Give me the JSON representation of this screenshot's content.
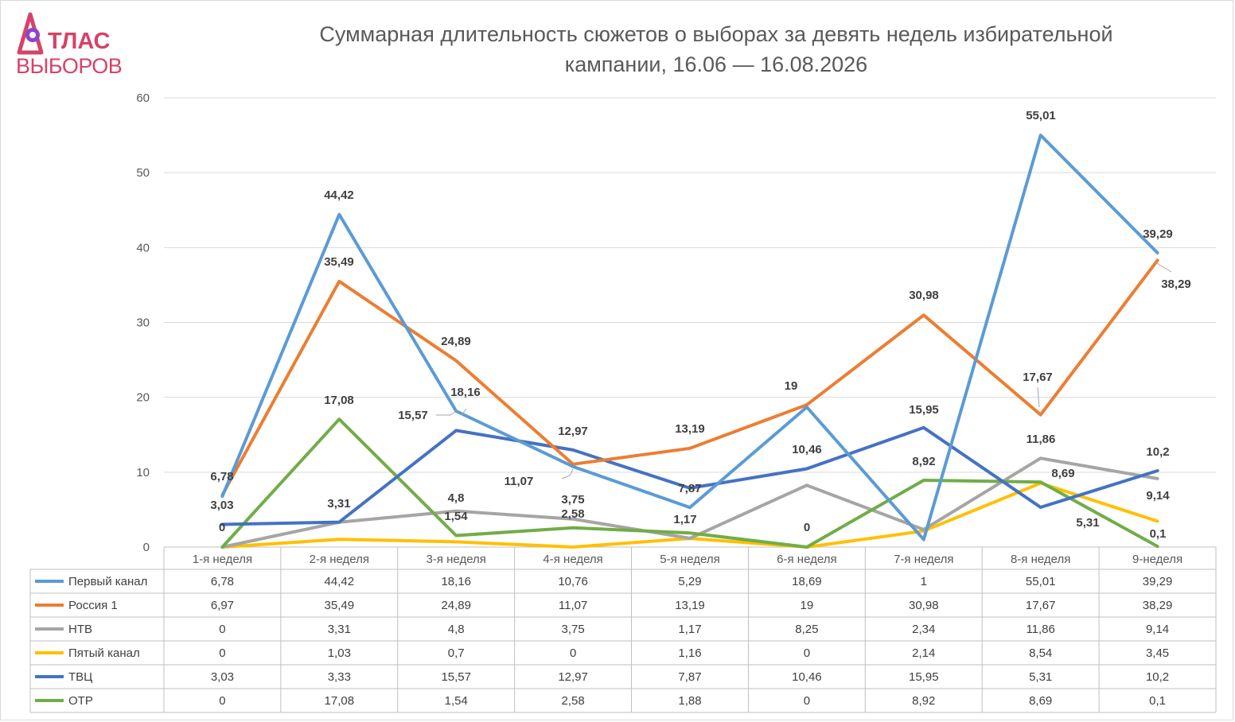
{
  "logo": {
    "top": "ТЛАС",
    "bottom": "ВЫБОРОВ",
    "color": "#d64268"
  },
  "chart_data": {
    "type": "line",
    "title": [
      "Суммарная длительность сюжетов о выборах за девять недель избирательной",
      "кампании, 16.06 — 16.08.2026"
    ],
    "categories": [
      "1-я неделя",
      "2-я неделя",
      "3-я неделя",
      "4-я неделя",
      "5-я неделя",
      "6-я неделя",
      "7-я неделя",
      "8-я неделя",
      "9-неделя"
    ],
    "yticks": [
      "0",
      "10",
      "20",
      "30",
      "40",
      "50",
      "60"
    ],
    "ylim": [
      0,
      60
    ],
    "grid": true,
    "legend": "table-bottom",
    "series": [
      {
        "name": "Первый канал",
        "color": "#5b9bd5",
        "values": [
          6.78,
          44.42,
          18.16,
          10.76,
          5.29,
          18.69,
          1,
          55.01,
          39.29
        ],
        "table": [
          "6,78",
          "44,42",
          "18,16",
          "10,76",
          "5,29",
          "18,69",
          "1",
          "55,01",
          "39,29"
        ]
      },
      {
        "name": "Россия 1",
        "color": "#ed7d31",
        "values": [
          6.97,
          35.49,
          24.89,
          11.07,
          13.19,
          19,
          30.98,
          17.67,
          38.29
        ],
        "table": [
          "6,97",
          "35,49",
          "24,89",
          "11,07",
          "13,19",
          "19",
          "30,98",
          "17,67",
          "38,29"
        ]
      },
      {
        "name": "НТВ",
        "color": "#a5a5a5",
        "values": [
          0,
          3.31,
          4.8,
          3.75,
          1.17,
          8.25,
          2.34,
          11.86,
          9.14
        ],
        "table": [
          "0",
          "3,31",
          "4,8",
          "3,75",
          "1,17",
          "8,25",
          "2,34",
          "11,86",
          "9,14"
        ]
      },
      {
        "name": "Пятый канал",
        "color": "#ffc000",
        "values": [
          0,
          1.03,
          0.7,
          0,
          1.16,
          0,
          2.14,
          8.54,
          3.45
        ],
        "table": [
          "0",
          "1,03",
          "0,7",
          "0",
          "1,16",
          "0",
          "2,14",
          "8,54",
          "3,45"
        ]
      },
      {
        "name": "ТВЦ",
        "color": "#4472c4",
        "values": [
          3.03,
          3.33,
          15.57,
          12.97,
          7.87,
          10.46,
          15.95,
          5.31,
          10.2
        ],
        "table": [
          "3,03",
          "3,33",
          "15,57",
          "12,97",
          "7,87",
          "10,46",
          "15,95",
          "5,31",
          "10,2"
        ]
      },
      {
        "name": "ОТР",
        "color": "#70ad47",
        "values": [
          0,
          17.08,
          1.54,
          2.58,
          1.88,
          0,
          8.92,
          8.69,
          0.1
        ],
        "table": [
          "0",
          "17,08",
          "1,54",
          "2,58",
          "1,88",
          "0",
          "8,92",
          "8,69",
          "0,1"
        ]
      }
    ],
    "data_labels": [
      {
        "text": "6,78"
      },
      {
        "text": "3,03"
      },
      {
        "text": "0"
      },
      {
        "text": "44,42"
      },
      {
        "text": "35,49"
      },
      {
        "text": "17,08"
      },
      {
        "text": "3,31"
      },
      {
        "text": "24,89"
      },
      {
        "text": "18,16"
      },
      {
        "text": "15,57"
      },
      {
        "text": "4,8"
      },
      {
        "text": "1,54"
      },
      {
        "text": "12,97"
      },
      {
        "text": "11,07"
      },
      {
        "text": "3,75"
      },
      {
        "text": "2,58"
      },
      {
        "text": "13,19"
      },
      {
        "text": "7,87"
      },
      {
        "text": "1,17"
      },
      {
        "text": "19"
      },
      {
        "text": "10,46"
      },
      {
        "text": "0"
      },
      {
        "text": "30,98"
      },
      {
        "text": "15,95"
      },
      {
        "text": "8,92"
      },
      {
        "text": "55,01"
      },
      {
        "text": "17,67"
      },
      {
        "text": "11,86"
      },
      {
        "text": "8,69"
      },
      {
        "text": "5,31"
      },
      {
        "text": "39,29"
      },
      {
        "text": "38,29"
      },
      {
        "text": "10,2"
      },
      {
        "text": "9,14"
      },
      {
        "text": "0,1"
      }
    ]
  }
}
